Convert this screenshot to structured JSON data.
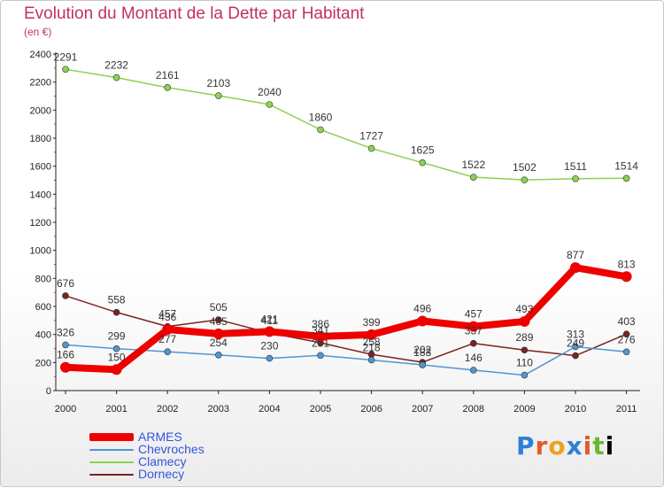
{
  "header": {
    "title": "Evolution du Montant de la Dette par Habitant",
    "subtitle": "(en €)"
  },
  "logo": {
    "text": "Proxiti"
  },
  "chart_data": {
    "type": "line",
    "title": "Evolution du Montant de la Dette par Habitant",
    "subtitle": "(en €)",
    "x": [
      2000,
      2001,
      2002,
      2003,
      2004,
      2005,
      2006,
      2007,
      2008,
      2009,
      2010,
      2011
    ],
    "ylim": [
      0,
      2400
    ],
    "yticks": [
      0,
      200,
      400,
      600,
      800,
      1000,
      1200,
      1400,
      1600,
      1800,
      2000,
      2200,
      2400
    ],
    "grid": false,
    "legend": "bottom-left",
    "series": [
      {
        "name": "ARMES",
        "color": "#ee0000",
        "values": [
          166,
          150,
          436,
          405,
          421,
          386,
          399,
          496,
          457,
          493,
          877,
          813
        ]
      },
      {
        "name": "Chevroches",
        "color": "#4f96d3",
        "values": [
          326,
          299,
          277,
          254,
          230,
          251,
          218,
          183,
          146,
          110,
          313,
          276
        ]
      },
      {
        "name": "Clamecy",
        "color": "#8fd14f",
        "values": [
          2291,
          2232,
          2161,
          2103,
          2040,
          1860,
          1727,
          1625,
          1522,
          1502,
          1511,
          1514
        ]
      },
      {
        "name": "Dornecy",
        "color": "#7a2222",
        "values": [
          676,
          558,
          457,
          505,
          411,
          341,
          258,
          202,
          337,
          289,
          249,
          403
        ]
      }
    ]
  }
}
